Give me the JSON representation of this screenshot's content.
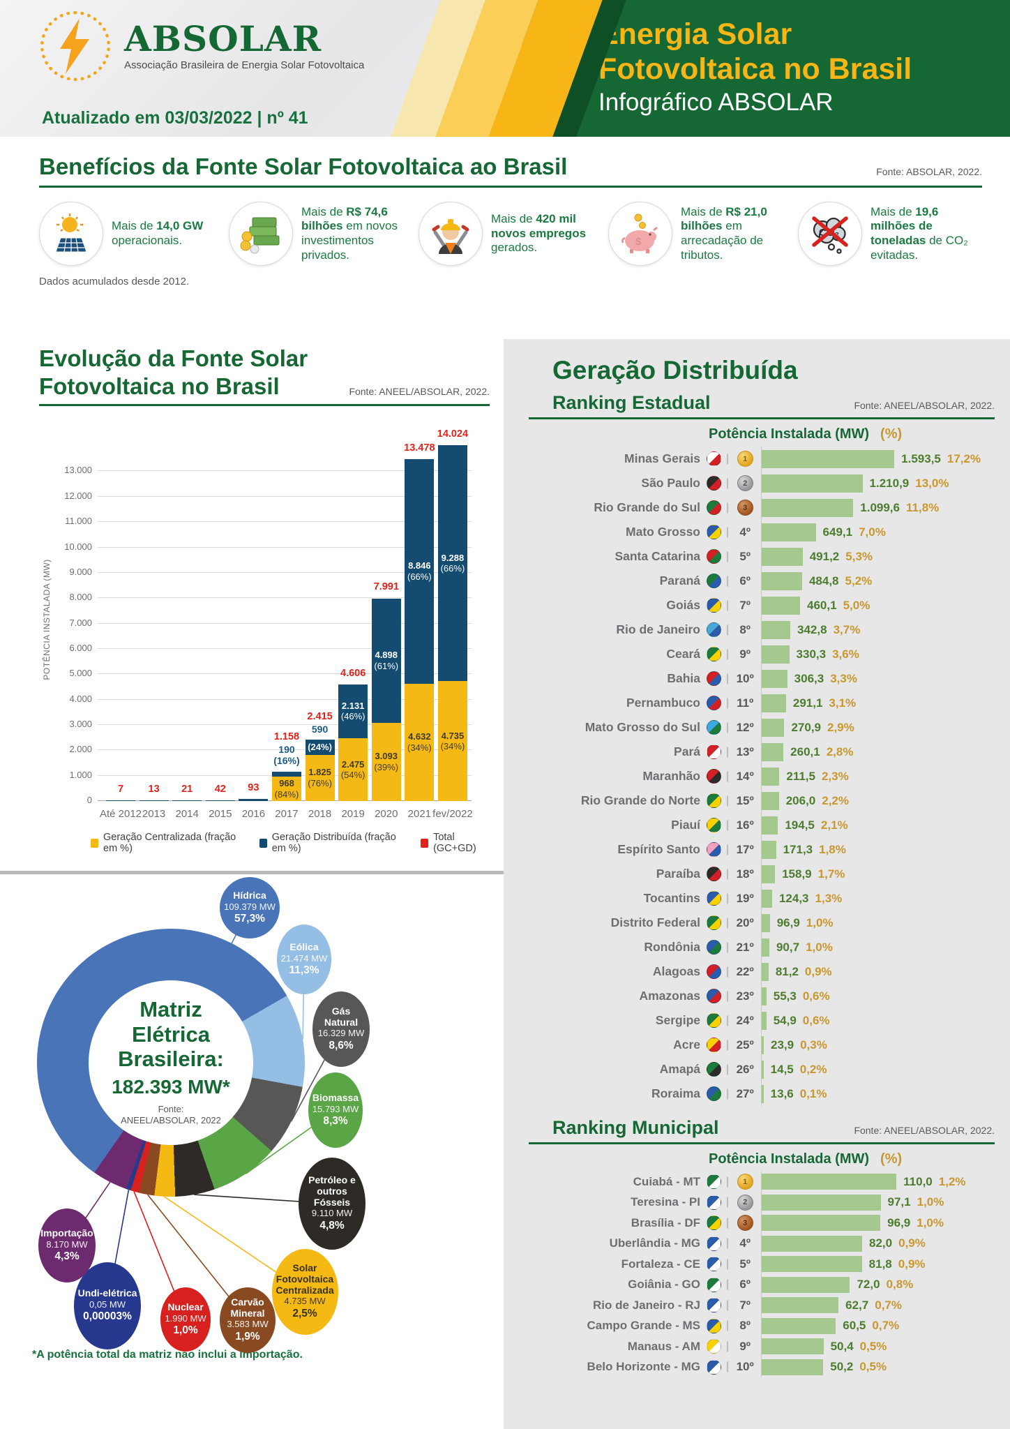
{
  "header": {
    "logo_name": "ABSOLAR",
    "logo_subtitle": "Associação Brasileira de Energia Solar Fotovoltaica",
    "updated": "Atualizado em 03/03/2022 | nº 41",
    "title_line1": "Energia Solar",
    "title_line2": "Fotovoltaica no Brasil",
    "subtitle": "Infográfico ABSOLAR",
    "accent_yellow": "#f7b615",
    "accent_green": "#156734"
  },
  "benefits": {
    "title": "Benefícios da Fonte Solar Fotovoltaica ao Brasil",
    "fonte": "Fonte: ABSOLAR, 2022.",
    "note": "Dados acumulados desde 2012.",
    "items": [
      {
        "icon": "solar-panel-sun-icon",
        "pre": "Mais de ",
        "bold": "14,0 GW",
        "post": " operacionais."
      },
      {
        "icon": "money-stack-icon",
        "pre": "Mais de ",
        "bold": "R$ 74,6 bilhões",
        "post": " em novos investimentos privados."
      },
      {
        "icon": "worker-icon",
        "pre": "Mais de ",
        "bold": "420 mil novos empregos",
        "post": " gerados."
      },
      {
        "icon": "piggy-bank-icon",
        "pre": "Mais de ",
        "bold": "R$ 21,0 bilhões",
        "post": " em arrecadação de tributos."
      },
      {
        "icon": "co2-icon",
        "pre": "Mais de ",
        "bold": "19,6 milhões de toneladas",
        "post": " de CO₂ evitadas."
      }
    ]
  },
  "chart_data": [
    {
      "type": "bar",
      "title_lines": [
        "Evolução da Fonte Solar",
        "Fotovoltaica no Brasil"
      ],
      "fonte": "Fonte: ANEEL/ABSOLAR, 2022.",
      "ylabel": "POTÊNCIA INSTALADA  (MW)",
      "ylim": [
        0,
        14300
      ],
      "ytick_labels": [
        "0",
        "1.000",
        "2.000",
        "3.000",
        "4.000",
        "5.000",
        "6.000",
        "7.000",
        "8.000",
        "9.000",
        "10.000",
        "11.000",
        "12.000",
        "13.000"
      ],
      "grid": true,
      "legend_position": "bottom",
      "categories": [
        "Até 2012",
        "2013",
        "2014",
        "2015",
        "2016",
        "2017",
        "2018",
        "2019",
        "2020",
        "2021",
        "fev/2022"
      ],
      "series": [
        {
          "name": "Geração Centralizada (fração em %)",
          "color": "#f5b915",
          "values": [
            0,
            0,
            0,
            0,
            0,
            968,
            1825,
            2475,
            3093,
            4632,
            4735
          ]
        },
        {
          "name": "Geração Distribuída (fração em %)",
          "color": "#134b71",
          "values": [
            7,
            13,
            21,
            42,
            93,
            190,
            590,
            2131,
            4898,
            8846,
            9288
          ]
        }
      ],
      "totals": [
        7,
        13,
        21,
        42,
        93,
        1158,
        2415,
        4606,
        7991,
        13478,
        14024
      ],
      "legend": [
        {
          "label": "Geração Centralizada (fração em %)",
          "color": "#f5b915"
        },
        {
          "label": "Geração Distribuída (fração em %)",
          "color": "#134b71"
        },
        {
          "label": "Total (GC+GD)",
          "color": "#e0231c"
        }
      ],
      "bar_labels": [
        {
          "total": "7"
        },
        {
          "total": "13"
        },
        {
          "total": "21"
        },
        {
          "total": "42"
        },
        {
          "total": "93"
        },
        {
          "total": "1.158",
          "above": [
            "190",
            "(16%)"
          ],
          "gc": [
            "968",
            "(84%)"
          ]
        },
        {
          "total": "2.415",
          "above": [
            "590"
          ],
          "gd": [
            "(24%)"
          ],
          "gc": [
            "1.825",
            "(76%)"
          ]
        },
        {
          "total": "4.606",
          "gd": [
            "2.131",
            "(46%)"
          ],
          "gc": [
            "2.475",
            "(54%)"
          ]
        },
        {
          "total": "7.991",
          "gd": [
            "4.898",
            "(61%)"
          ],
          "gc": [
            "3.093",
            "(39%)"
          ]
        },
        {
          "total": "13.478",
          "gd": [
            "8.846",
            "(66%)"
          ],
          "gc": [
            "4.632",
            "(34%)"
          ]
        },
        {
          "total": "14.024",
          "gd": [
            "9.288",
            "(66%)"
          ],
          "gc": [
            "4.735",
            "(34%)"
          ]
        }
      ]
    },
    {
      "type": "pie",
      "title_lines": [
        "Matriz",
        "Elétrica",
        "Brasileira:"
      ],
      "center_value": "182.393 MW*",
      "center_fonte_lines": [
        "Fonte:",
        "ANEEL/ABSOLAR, 2022"
      ],
      "footnote": "*A potência total da matriz não inclui a importação.",
      "slices": [
        {
          "name": "Hídrica",
          "mw": "109.379 MW",
          "pct": "57,3%",
          "value": 57.3,
          "color": "#4a74b8"
        },
        {
          "name": "Eólica",
          "mw": "21.474 MW",
          "pct": "11,3%",
          "value": 11.3,
          "color": "#95bee4"
        },
        {
          "name": "Gás Natural",
          "mw": "16.329 MW",
          "pct": "8,6%",
          "value": 8.6,
          "color": "#575756"
        },
        {
          "name": "Biomassa",
          "mw": "15.793 MW",
          "pct": "8,3%",
          "value": 8.3,
          "color": "#5aa546"
        },
        {
          "name": "Petróleo e outros Fósseis",
          "mw": "9.110 MW",
          "pct": "4,8%",
          "value": 4.8,
          "color": "#2e2a25"
        },
        {
          "name": "Solar Fotovoltaica Centralizada",
          "mw": "4.735 MW",
          "pct": "2,5%",
          "value": 2.5,
          "color": "#f5b914",
          "text_color": "#35301d"
        },
        {
          "name": "Carvão Mineral",
          "mw": "3.583 MW",
          "pct": "1,9%",
          "value": 1.9,
          "color": "#8a4a21"
        },
        {
          "name": "Nuclear",
          "mw": "1.990 MW",
          "pct": "1,0%",
          "value": 1.0,
          "color": "#d6211f"
        },
        {
          "name": "Undi-elétrica",
          "mw": "0,05 MW",
          "pct": "0,00003%",
          "value": 0.05,
          "color": "#27388f"
        },
        {
          "name": "Importação",
          "mw": "8.170 MW",
          "pct": "4,3%",
          "value": 4.3,
          "color": "#6d2a6e"
        }
      ]
    }
  ],
  "rankings": {
    "panel_title": "Geração Distribuída",
    "estadual": {
      "title": "Ranking Estadual",
      "fonte": "Fonte: ANEEL/ABSOLAR, 2022.",
      "col_header_mw": "Potência Instalada (MW)",
      "col_header_pct": "(%)",
      "max_value": 1593.5,
      "rows": [
        {
          "name": "Minas Gerais",
          "rank": 1,
          "rank_label": "1º",
          "value": 1593.5,
          "value_label": "1.593,5",
          "pct": "17,2%",
          "flag": [
            "#ffffff",
            "#d12026"
          ]
        },
        {
          "name": "São Paulo",
          "rank": 2,
          "rank_label": "2º",
          "value": 1210.9,
          "value_label": "1.210,9",
          "pct": "13,0%",
          "flag": [
            "#2b2b2b",
            "#d12026"
          ]
        },
        {
          "name": "Rio Grande do Sul",
          "rank": 3,
          "rank_label": "3º",
          "value": 1099.6,
          "value_label": "1.099,6",
          "pct": "11,8%",
          "flag": [
            "#1c7a3d",
            "#d12026"
          ]
        },
        {
          "name": "Mato Grosso",
          "rank": 4,
          "rank_label": "4º",
          "value": 649.1,
          "value_label": "649,1",
          "pct": "7,0%",
          "flag": [
            "#2a5caa",
            "#f6d200"
          ]
        },
        {
          "name": "Santa Catarina",
          "rank": 5,
          "rank_label": "5º",
          "value": 491.2,
          "value_label": "491,2",
          "pct": "5,3%",
          "flag": [
            "#d12026",
            "#1c7a3d"
          ]
        },
        {
          "name": "Paraná",
          "rank": 6,
          "rank_label": "6º",
          "value": 484.8,
          "value_label": "484,8",
          "pct": "5,2%",
          "flag": [
            "#1c7a3d",
            "#2a5caa"
          ]
        },
        {
          "name": "Goiás",
          "rank": 7,
          "rank_label": "7º",
          "value": 460.1,
          "value_label": "460,1",
          "pct": "5,0%",
          "flag": [
            "#2a5caa",
            "#f6d200"
          ]
        },
        {
          "name": "Rio de Janeiro",
          "rank": 8,
          "rank_label": "8º",
          "value": 342.8,
          "value_label": "342,8",
          "pct": "3,7%",
          "flag": [
            "#4aa8d8",
            "#2a5caa"
          ]
        },
        {
          "name": "Ceará",
          "rank": 9,
          "rank_label": "9º",
          "value": 330.3,
          "value_label": "330,3",
          "pct": "3,6%",
          "flag": [
            "#1c7a3d",
            "#f6d200"
          ]
        },
        {
          "name": "Bahia",
          "rank": 10,
          "rank_label": "10º",
          "value": 306.3,
          "value_label": "306,3",
          "pct": "3,3%",
          "flag": [
            "#d12026",
            "#2a5caa"
          ]
        },
        {
          "name": "Pernambuco",
          "rank": 11,
          "rank_label": "11º",
          "value": 291.1,
          "value_label": "291,1",
          "pct": "3,1%",
          "flag": [
            "#2a5caa",
            "#d12026"
          ]
        },
        {
          "name": "Mato Grosso do Sul",
          "rank": 12,
          "rank_label": "12º",
          "value": 270.9,
          "value_label": "270,9",
          "pct": "2,9%",
          "flag": [
            "#3da9e0",
            "#1c7a3d"
          ]
        },
        {
          "name": "Pará",
          "rank": 13,
          "rank_label": "13º",
          "value": 260.1,
          "value_label": "260,1",
          "pct": "2,8%",
          "flag": [
            "#d12026",
            "#ffffff"
          ]
        },
        {
          "name": "Maranhão",
          "rank": 14,
          "rank_label": "14º",
          "value": 211.5,
          "value_label": "211,5",
          "pct": "2,3%",
          "flag": [
            "#d12026",
            "#2b2b2b"
          ]
        },
        {
          "name": "Rio Grande do Norte",
          "rank": 15,
          "rank_label": "15º",
          "value": 206.0,
          "value_label": "206,0",
          "pct": "2,2%",
          "flag": [
            "#1c7a3d",
            "#f6d200"
          ]
        },
        {
          "name": "Piauí",
          "rank": 16,
          "rank_label": "16º",
          "value": 194.5,
          "value_label": "194,5",
          "pct": "2,1%",
          "flag": [
            "#f6d200",
            "#1c7a3d"
          ]
        },
        {
          "name": "Espírito Santo",
          "rank": 17,
          "rank_label": "17º",
          "value": 171.3,
          "value_label": "171,3",
          "pct": "1,8%",
          "flag": [
            "#f2a0c0",
            "#2a5caa"
          ]
        },
        {
          "name": "Paraíba",
          "rank": 18,
          "rank_label": "18º",
          "value": 158.9,
          "value_label": "158,9",
          "pct": "1,7%",
          "flag": [
            "#2b2b2b",
            "#d12026"
          ]
        },
        {
          "name": "Tocantins",
          "rank": 19,
          "rank_label": "19º",
          "value": 124.3,
          "value_label": "124,3",
          "pct": "1,3%",
          "flag": [
            "#2a5caa",
            "#f6d200"
          ]
        },
        {
          "name": "Distrito Federal",
          "rank": 20,
          "rank_label": "20º",
          "value": 96.9,
          "value_label": "96,9",
          "pct": "1,0%",
          "flag": [
            "#1c7a3d",
            "#f6d200"
          ]
        },
        {
          "name": "Rondônia",
          "rank": 21,
          "rank_label": "21º",
          "value": 90.7,
          "value_label": "90,7",
          "pct": "1,0%",
          "flag": [
            "#2a5caa",
            "#1c7a3d"
          ]
        },
        {
          "name": "Alagoas",
          "rank": 22,
          "rank_label": "22º",
          "value": 81.2,
          "value_label": "81,2",
          "pct": "0,9%",
          "flag": [
            "#d12026",
            "#2a5caa"
          ]
        },
        {
          "name": "Amazonas",
          "rank": 23,
          "rank_label": "23º",
          "value": 55.3,
          "value_label": "55,3",
          "pct": "0,6%",
          "flag": [
            "#2a5caa",
            "#d12026"
          ]
        },
        {
          "name": "Sergipe",
          "rank": 24,
          "rank_label": "24º",
          "value": 54.9,
          "value_label": "54,9",
          "pct": "0,6%",
          "flag": [
            "#1c7a3d",
            "#f6d200"
          ]
        },
        {
          "name": "Acre",
          "rank": 25,
          "rank_label": "25º",
          "value": 23.9,
          "value_label": "23,9",
          "pct": "0,3%",
          "flag": [
            "#f6d200",
            "#d12026"
          ]
        },
        {
          "name": "Amapá",
          "rank": 26,
          "rank_label": "26º",
          "value": 14.5,
          "value_label": "14,5",
          "pct": "0,2%",
          "flag": [
            "#1c7a3d",
            "#2b2b2b"
          ]
        },
        {
          "name": "Roraima",
          "rank": 27,
          "rank_label": "27º",
          "value": 13.6,
          "value_label": "13,6",
          "pct": "0,1%",
          "flag": [
            "#2a5caa",
            "#1c7a3d"
          ]
        }
      ]
    },
    "municipal": {
      "title": "Ranking Municipal",
      "fonte": "Fonte: ANEEL/ABSOLAR, 2022.",
      "col_header_mw": "Potência Instalada (MW)",
      "col_header_pct": "(%)",
      "max_value": 110.0,
      "rows": [
        {
          "name": "Cuiabá - MT",
          "rank": 1,
          "rank_label": "1º",
          "value": 110.0,
          "value_label": "110,0",
          "pct": "1,2%",
          "flag": [
            "#1c7a3d",
            "#ffffff"
          ]
        },
        {
          "name": "Teresina - PI",
          "rank": 2,
          "rank_label": "2º",
          "value": 97.1,
          "value_label": "97,1",
          "pct": "1,0%",
          "flag": [
            "#2a5caa",
            "#ffffff"
          ]
        },
        {
          "name": "Brasília - DF",
          "rank": 3,
          "rank_label": "3º",
          "value": 96.9,
          "value_label": "96,9",
          "pct": "1,0%",
          "flag": [
            "#1c7a3d",
            "#f6d200"
          ]
        },
        {
          "name": "Uberlândia - MG",
          "rank": 4,
          "rank_label": "4º",
          "value": 82.0,
          "value_label": "82,0",
          "pct": "0,9%",
          "flag": [
            "#2a5caa",
            "#ffffff"
          ]
        },
        {
          "name": "Fortaleza - CE",
          "rank": 5,
          "rank_label": "5º",
          "value": 81.8,
          "value_label": "81,8",
          "pct": "0,9%",
          "flag": [
            "#2a5caa",
            "#ffffff"
          ]
        },
        {
          "name": "Goiânia - GO",
          "rank": 6,
          "rank_label": "6º",
          "value": 72.0,
          "value_label": "72,0",
          "pct": "0,8%",
          "flag": [
            "#1c7a3d",
            "#ffffff"
          ]
        },
        {
          "name": "Rio de Janeiro - RJ",
          "rank": 7,
          "rank_label": "7º",
          "value": 62.7,
          "value_label": "62,7",
          "pct": "0,7%",
          "flag": [
            "#2a5caa",
            "#ffffff"
          ]
        },
        {
          "name": "Campo Grande - MS",
          "rank": 8,
          "rank_label": "8º",
          "value": 60.5,
          "value_label": "60,5",
          "pct": "0,7%",
          "flag": [
            "#2a5caa",
            "#f6d200"
          ]
        },
        {
          "name": "Manaus - AM",
          "rank": 9,
          "rank_label": "9º",
          "value": 50.4,
          "value_label": "50,4",
          "pct": "0,5%",
          "flag": [
            "#f6d200",
            "#ffffff"
          ]
        },
        {
          "name": "Belo Horizonte - MG",
          "rank": 10,
          "rank_label": "10º",
          "value": 50.2,
          "value_label": "50,2",
          "pct": "0,5%",
          "flag": [
            "#2a5caa",
            "#ffffff"
          ]
        }
      ]
    }
  }
}
